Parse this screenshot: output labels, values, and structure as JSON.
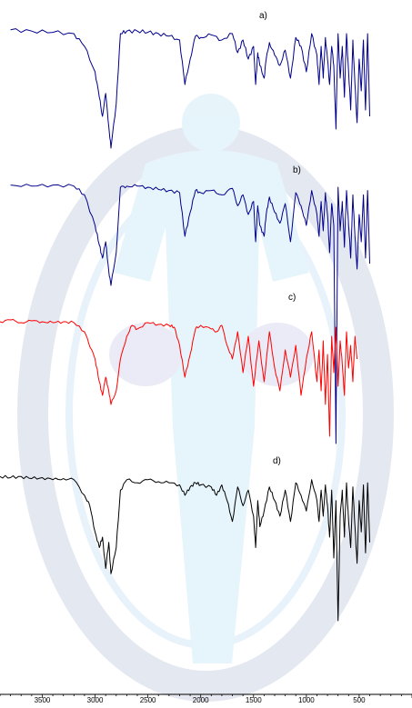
{
  "chart_data": {
    "type": "line",
    "xlabel": "",
    "ylabel": "",
    "x_reversed": true,
    "xlim": [
      3900,
      0
    ],
    "x_ticks": [
      "3500",
      "3000",
      "2500",
      "2000",
      "1500",
      "1000",
      "500"
    ],
    "grid": false,
    "watermark": "faded human-figure emblem in light blue and grey behind the plot",
    "series": [
      {
        "name": "a)",
        "color": "#00008b",
        "x": [
          3800,
          3600,
          3400,
          3200,
          3100,
          3000,
          2960,
          2930,
          2900,
          2870,
          2850,
          2800,
          2760,
          2700,
          2600,
          2500,
          2400,
          2300,
          2200,
          2150,
          2100,
          2050,
          2000,
          1900,
          1800,
          1700,
          1650,
          1600,
          1550,
          1500,
          1480,
          1460,
          1440,
          1400,
          1380,
          1350,
          1300,
          1250,
          1200,
          1150,
          1100,
          1050,
          1000,
          950,
          900,
          880,
          860,
          840,
          820,
          800,
          780,
          760,
          740,
          720,
          700,
          680,
          660,
          640,
          620,
          600,
          580,
          560,
          540,
          520,
          500,
          480,
          460,
          440,
          420,
          400
        ],
        "y": [
          0.98,
          0.97,
          0.96,
          0.95,
          0.85,
          0.65,
          0.45,
          0.3,
          0.48,
          0.22,
          0.05,
          0.4,
          0.95,
          0.97,
          0.97,
          0.96,
          0.95,
          0.93,
          0.9,
          0.55,
          0.75,
          0.93,
          0.92,
          0.94,
          0.9,
          0.95,
          0.8,
          0.9,
          0.75,
          0.85,
          0.55,
          0.8,
          0.7,
          0.6,
          0.75,
          0.88,
          0.78,
          0.7,
          0.82,
          0.6,
          0.92,
          0.85,
          0.65,
          0.95,
          0.78,
          0.55,
          0.85,
          0.6,
          0.92,
          0.75,
          0.55,
          0.85,
          0.7,
          0.2,
          0.95,
          0.6,
          0.85,
          0.45,
          0.95,
          0.65,
          0.35,
          0.9,
          0.55,
          0.25,
          0.75,
          0.5,
          0.9,
          0.35,
          0.95,
          0.3
        ]
      },
      {
        "name": "b)",
        "color": "#00008b",
        "x": [
          3800,
          3600,
          3400,
          3200,
          3100,
          3000,
          2960,
          2930,
          2900,
          2870,
          2850,
          2800,
          2760,
          2700,
          2600,
          2500,
          2400,
          2300,
          2200,
          2150,
          2100,
          2050,
          2000,
          1900,
          1800,
          1700,
          1650,
          1600,
          1550,
          1500,
          1480,
          1460,
          1440,
          1400,
          1380,
          1350,
          1300,
          1250,
          1200,
          1150,
          1100,
          1050,
          1000,
          950,
          900,
          880,
          860,
          840,
          820,
          800,
          780,
          760,
          740,
          720,
          700,
          680,
          660,
          640,
          620,
          600,
          580,
          560,
          540,
          520,
          500,
          480,
          460,
          440,
          420,
          400
        ],
        "y": [
          0.97,
          0.96,
          0.97,
          0.96,
          0.88,
          0.6,
          0.42,
          0.3,
          0.45,
          0.18,
          0.05,
          0.35,
          0.95,
          0.96,
          0.96,
          0.95,
          0.93,
          0.92,
          0.9,
          0.5,
          0.72,
          0.92,
          0.9,
          0.92,
          0.88,
          0.94,
          0.78,
          0.88,
          0.7,
          0.82,
          0.45,
          0.78,
          0.6,
          0.5,
          0.7,
          0.86,
          0.72,
          0.62,
          0.8,
          0.45,
          0.9,
          0.78,
          0.6,
          0.92,
          0.7,
          0.5,
          0.82,
          0.55,
          0.9,
          0.7,
          0.35,
          0.8,
          0.6,
          -1.4,
          0.95,
          0.55,
          0.82,
          0.4,
          0.92,
          0.6,
          0.3,
          0.88,
          0.5,
          0.2,
          0.7,
          0.45,
          0.88,
          0.3,
          0.92,
          0.25
        ]
      },
      {
        "name": "c)",
        "color": "#ff0000",
        "x": [
          3900,
          3800,
          3700,
          3600,
          3500,
          3400,
          3300,
          3200,
          3100,
          3000,
          2960,
          2930,
          2900,
          2870,
          2850,
          2800,
          2760,
          2700,
          2650,
          2600,
          2500,
          2400,
          2300,
          2250,
          2200,
          2150,
          2100,
          2050,
          2000,
          1900,
          1850,
          1800,
          1750,
          1700,
          1650,
          1600,
          1550,
          1500,
          1450,
          1400,
          1350,
          1300,
          1250,
          1200,
          1150,
          1100,
          1050,
          1000,
          950,
          900,
          880,
          860,
          840,
          820,
          800,
          780,
          760,
          740,
          720,
          700,
          680,
          660,
          640,
          620,
          600,
          580,
          560,
          540,
          520
        ],
        "y": [
          0.96,
          0.98,
          0.95,
          0.97,
          0.96,
          0.95,
          0.96,
          0.95,
          0.85,
          0.55,
          0.3,
          0.15,
          0.35,
          0.2,
          0.05,
          0.2,
          0.55,
          0.8,
          0.92,
          0.88,
          0.95,
          0.93,
          0.92,
          0.9,
          0.7,
          0.35,
          0.6,
          0.88,
          0.92,
          0.88,
          0.85,
          0.92,
          0.7,
          0.55,
          0.85,
          0.4,
          0.8,
          0.25,
          0.75,
          0.3,
          0.85,
          0.45,
          0.2,
          0.65,
          0.35,
          0.7,
          0.15,
          0.55,
          0.85,
          0.3,
          0.65,
          0.2,
          0.75,
          0.05,
          0.6,
          -0.3,
          0.8,
          0.4,
          0.9,
          0.25,
          0.75,
          0.5,
          0.15,
          0.85,
          0.45,
          0.7,
          0.3,
          0.8,
          0.55
        ]
      },
      {
        "name": "d)",
        "color": "#000000",
        "x": [
          3900,
          3800,
          3700,
          3600,
          3500,
          3400,
          3300,
          3200,
          3100,
          3050,
          3000,
          2960,
          2930,
          2900,
          2870,
          2850,
          2800,
          2760,
          2700,
          2600,
          2500,
          2400,
          2300,
          2200,
          2150,
          2100,
          2050,
          2000,
          1900,
          1850,
          1800,
          1750,
          1700,
          1650,
          1600,
          1550,
          1500,
          1480,
          1460,
          1440,
          1400,
          1350,
          1300,
          1250,
          1200,
          1150,
          1100,
          1050,
          1000,
          950,
          900,
          880,
          860,
          840,
          820,
          800,
          780,
          760,
          740,
          720,
          700,
          680,
          660,
          640,
          620,
          600,
          580,
          560,
          540,
          520,
          500,
          480,
          460,
          440,
          420,
          400
        ],
        "y": [
          0.98,
          0.97,
          0.98,
          0.96,
          0.97,
          0.95,
          0.96,
          0.95,
          0.8,
          0.7,
          0.45,
          0.3,
          0.4,
          0.1,
          0.35,
          0.05,
          0.3,
          0.85,
          0.95,
          0.92,
          0.95,
          0.93,
          0.92,
          0.9,
          0.8,
          0.88,
          0.92,
          0.9,
          0.88,
          0.8,
          0.9,
          0.75,
          0.55,
          0.88,
          0.7,
          0.85,
          0.6,
          0.3,
          0.75,
          0.5,
          0.65,
          0.88,
          0.75,
          0.6,
          0.85,
          0.55,
          0.92,
          0.8,
          0.65,
          0.95,
          0.75,
          0.55,
          0.85,
          0.6,
          0.9,
          0.7,
          0.4,
          0.85,
          0.2,
          0.75,
          -0.4,
          0.6,
          0.85,
          0.4,
          0.92,
          0.55,
          0.3,
          0.88,
          0.5,
          0.15,
          0.75,
          0.45,
          0.9,
          0.25,
          0.92,
          0.35
        ]
      }
    ]
  }
}
